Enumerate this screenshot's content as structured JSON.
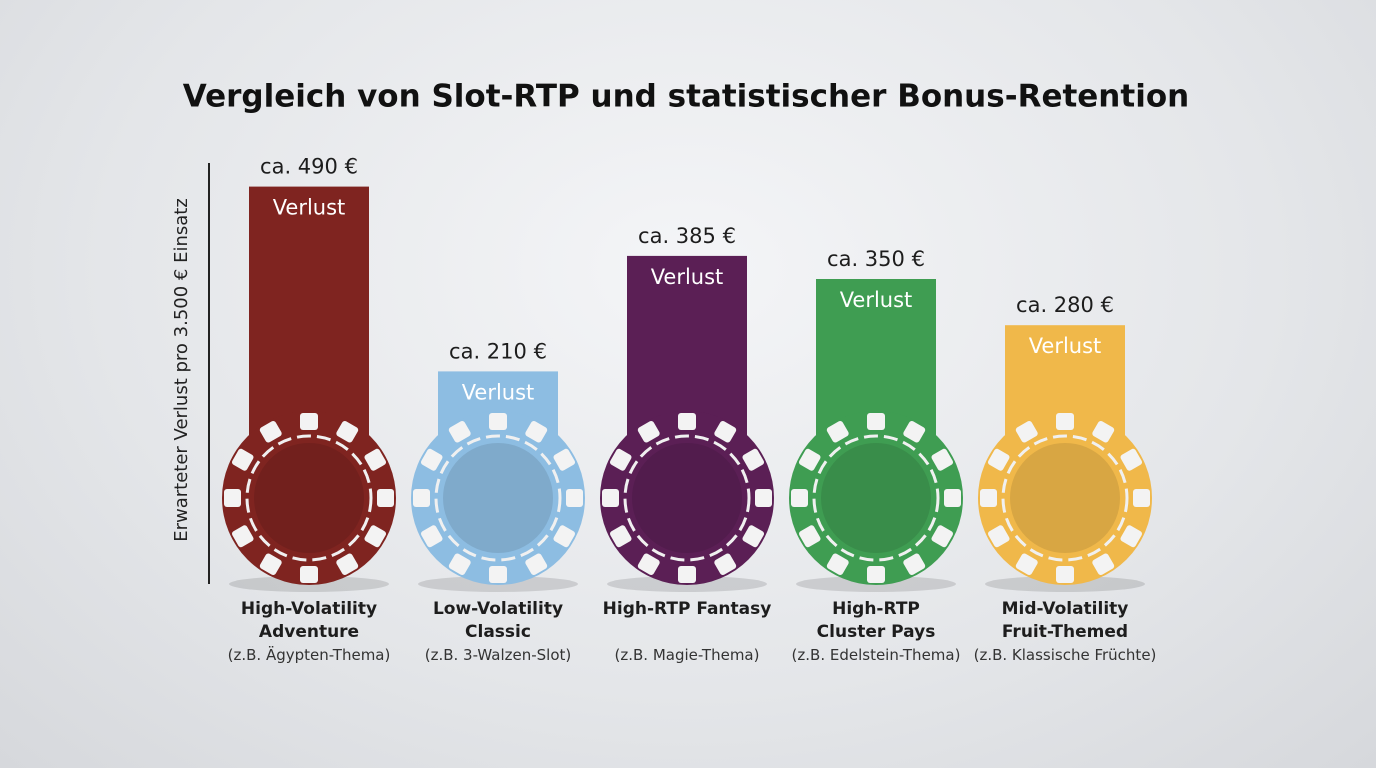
{
  "chart_data": {
    "type": "bar",
    "title": "Vergleich von Slot-RTP und statistischer Bonus-Retention",
    "y_label": "Erwarteter Verlust pro 3.500 € Einsatz",
    "bar_label": "Verlust",
    "categories": [
      "High-Volatility\nAdventure",
      "Low-Volatility\nClassic",
      "High-RTP Fantasy",
      "High-RTP\nCluster Pays",
      "Mid-Volatility\nFruit-Themed"
    ],
    "subcategories": [
      "(z.B. Ägypten-Thema)",
      "(z.B. 3-Walzen-Slot)",
      "(z.B. Magie-Thema)",
      "(z.B. Edelstein-Thema)",
      "(z.B. Klassische Früchte)"
    ],
    "values": [
      490,
      210,
      385,
      350,
      280
    ],
    "value_labels": [
      "ca. 490 €",
      "ca. 210 €",
      "ca. 385 €",
      "ca. 350 €",
      "ca. 280 €"
    ],
    "colors": [
      "#7f2420",
      "#8dbde2",
      "#5b1f55",
      "#3f9d52",
      "#f0b84a"
    ],
    "ylim": [
      0,
      500
    ]
  }
}
